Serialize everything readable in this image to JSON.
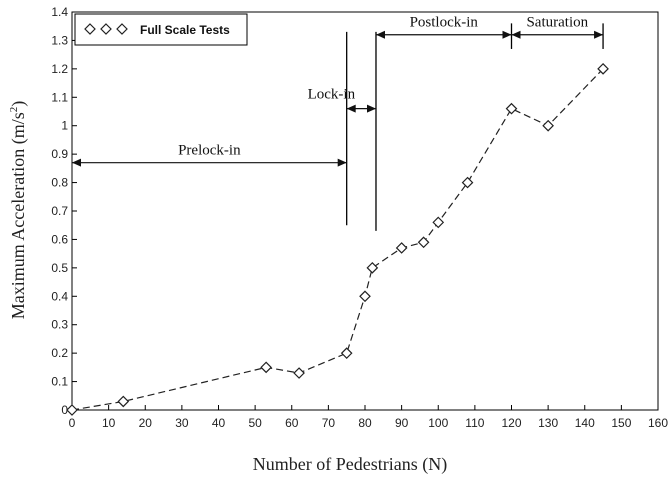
{
  "chart_data": {
    "type": "scatter",
    "xlabel": "Number of Pedestrians  (N)",
    "ylabel_main": "Maximum Acceleration (m/s",
    "ylabel_sup": "2",
    "ylabel_tail": ")",
    "xlim": [
      0,
      160
    ],
    "ylim": [
      0,
      1.4
    ],
    "x_ticks": [
      "0",
      "10",
      "20",
      "30",
      "40",
      "50",
      "60",
      "70",
      "80",
      "90",
      "100",
      "110",
      "120",
      "130",
      "140",
      "150",
      "160"
    ],
    "y_ticks": [
      "0",
      "0.1",
      "0.2",
      "0.3",
      "0.4",
      "0.5",
      "0.6",
      "0.7",
      "0.8",
      "0.9",
      "1",
      "1.1",
      "1.2",
      "1.3",
      "1.4"
    ],
    "grid": false,
    "legend_position": "top-left",
    "series": [
      {
        "name": "Full Scale Tests",
        "line_style": "dashed",
        "marker": "diamond",
        "x": [
          0,
          14,
          53,
          62,
          75,
          80,
          82,
          90,
          96,
          100,
          108,
          120,
          130,
          145
        ],
        "y": [
          0.0,
          0.03,
          0.15,
          0.13,
          0.2,
          0.4,
          0.5,
          0.57,
          0.59,
          0.66,
          0.8,
          1.06,
          1.0,
          1.2
        ]
      }
    ],
    "annotations": [
      {
        "label": "Prelock-in",
        "x_start": 0,
        "x_end": 75,
        "y": 0.87
      },
      {
        "label": "Lock-in",
        "x_start": 75,
        "x_end": 83,
        "y": 1.06
      },
      {
        "label": "Postlock-in",
        "x_start": 83,
        "x_end": 120,
        "y": 1.32
      },
      {
        "label": "Saturation",
        "x_start": 120,
        "x_end": 145,
        "y": 1.32
      }
    ],
    "markers_vertical": [
      {
        "x": 75,
        "y_from": 0.65,
        "y_to": 1.33
      },
      {
        "x": 83,
        "y_from": 0.63,
        "y_to": 1.33
      },
      {
        "x": 120,
        "y_from": 1.27,
        "y_to": 1.36
      },
      {
        "x": 145,
        "y_from": 1.27,
        "y_to": 1.36
      }
    ]
  }
}
